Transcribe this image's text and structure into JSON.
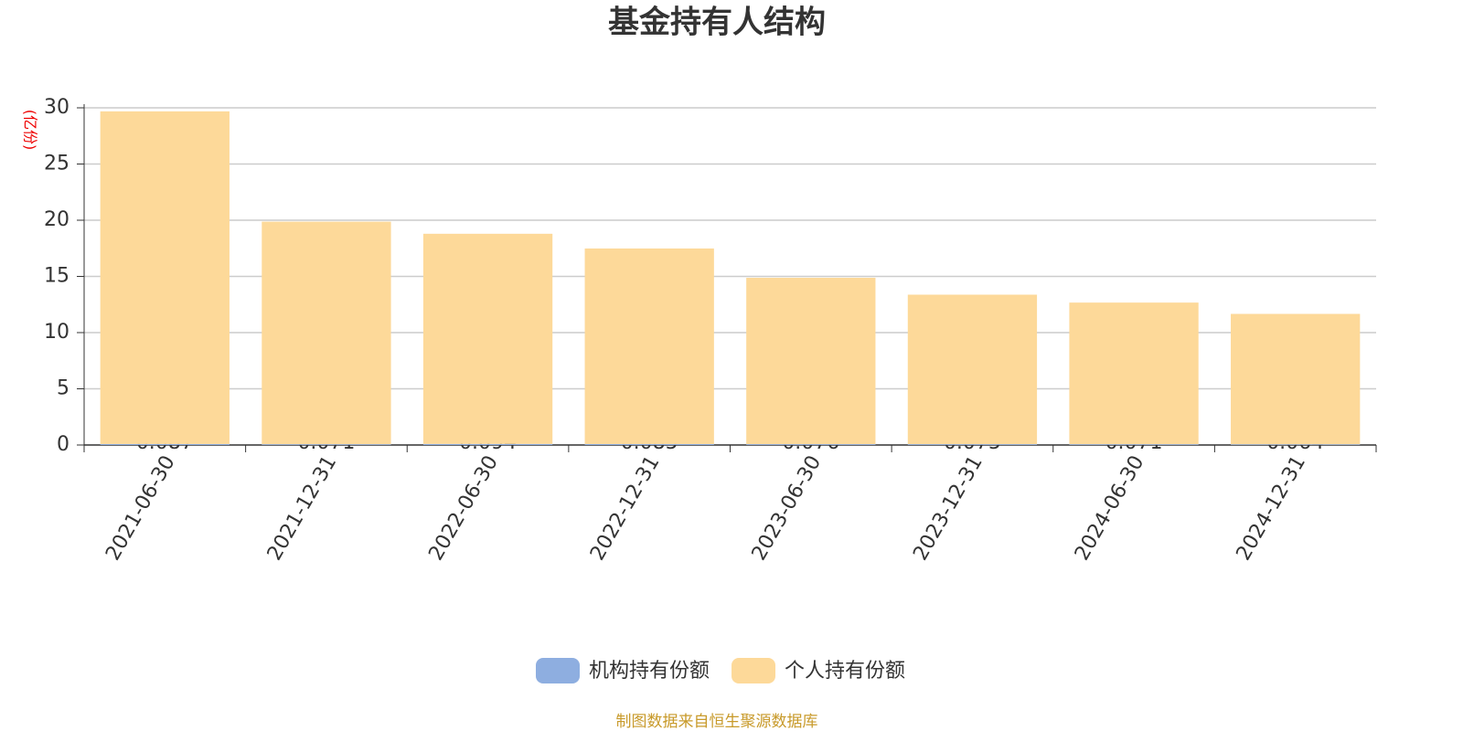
{
  "chart_data": {
    "type": "bar",
    "stacked": true,
    "title": "基金持有人结构",
    "y_label": "(亿份)",
    "source": "制图数据来自恒生聚源数据库",
    "categories": [
      "2021-06-30",
      "2021-12-31",
      "2022-06-30",
      "2022-12-31",
      "2023-06-30",
      "2023-12-31",
      "2024-06-30",
      "2024-12-31"
    ],
    "series": [
      {
        "name": "机构持有份额",
        "color": "#8eaee0",
        "values": [
          0.087,
          0.071,
          0.094,
          0.085,
          0.076,
          0.075,
          0.071,
          0.064
        ]
      },
      {
        "name": "个人持有份额",
        "color": "#fdd999",
        "values": [
          29.6,
          19.8,
          18.7,
          17.4,
          14.8,
          13.3,
          12.6,
          11.6
        ]
      }
    ],
    "ylim": [
      0,
      30
    ],
    "yticks": [
      0,
      5,
      10,
      15,
      20,
      25,
      30
    ],
    "grid": true
  }
}
